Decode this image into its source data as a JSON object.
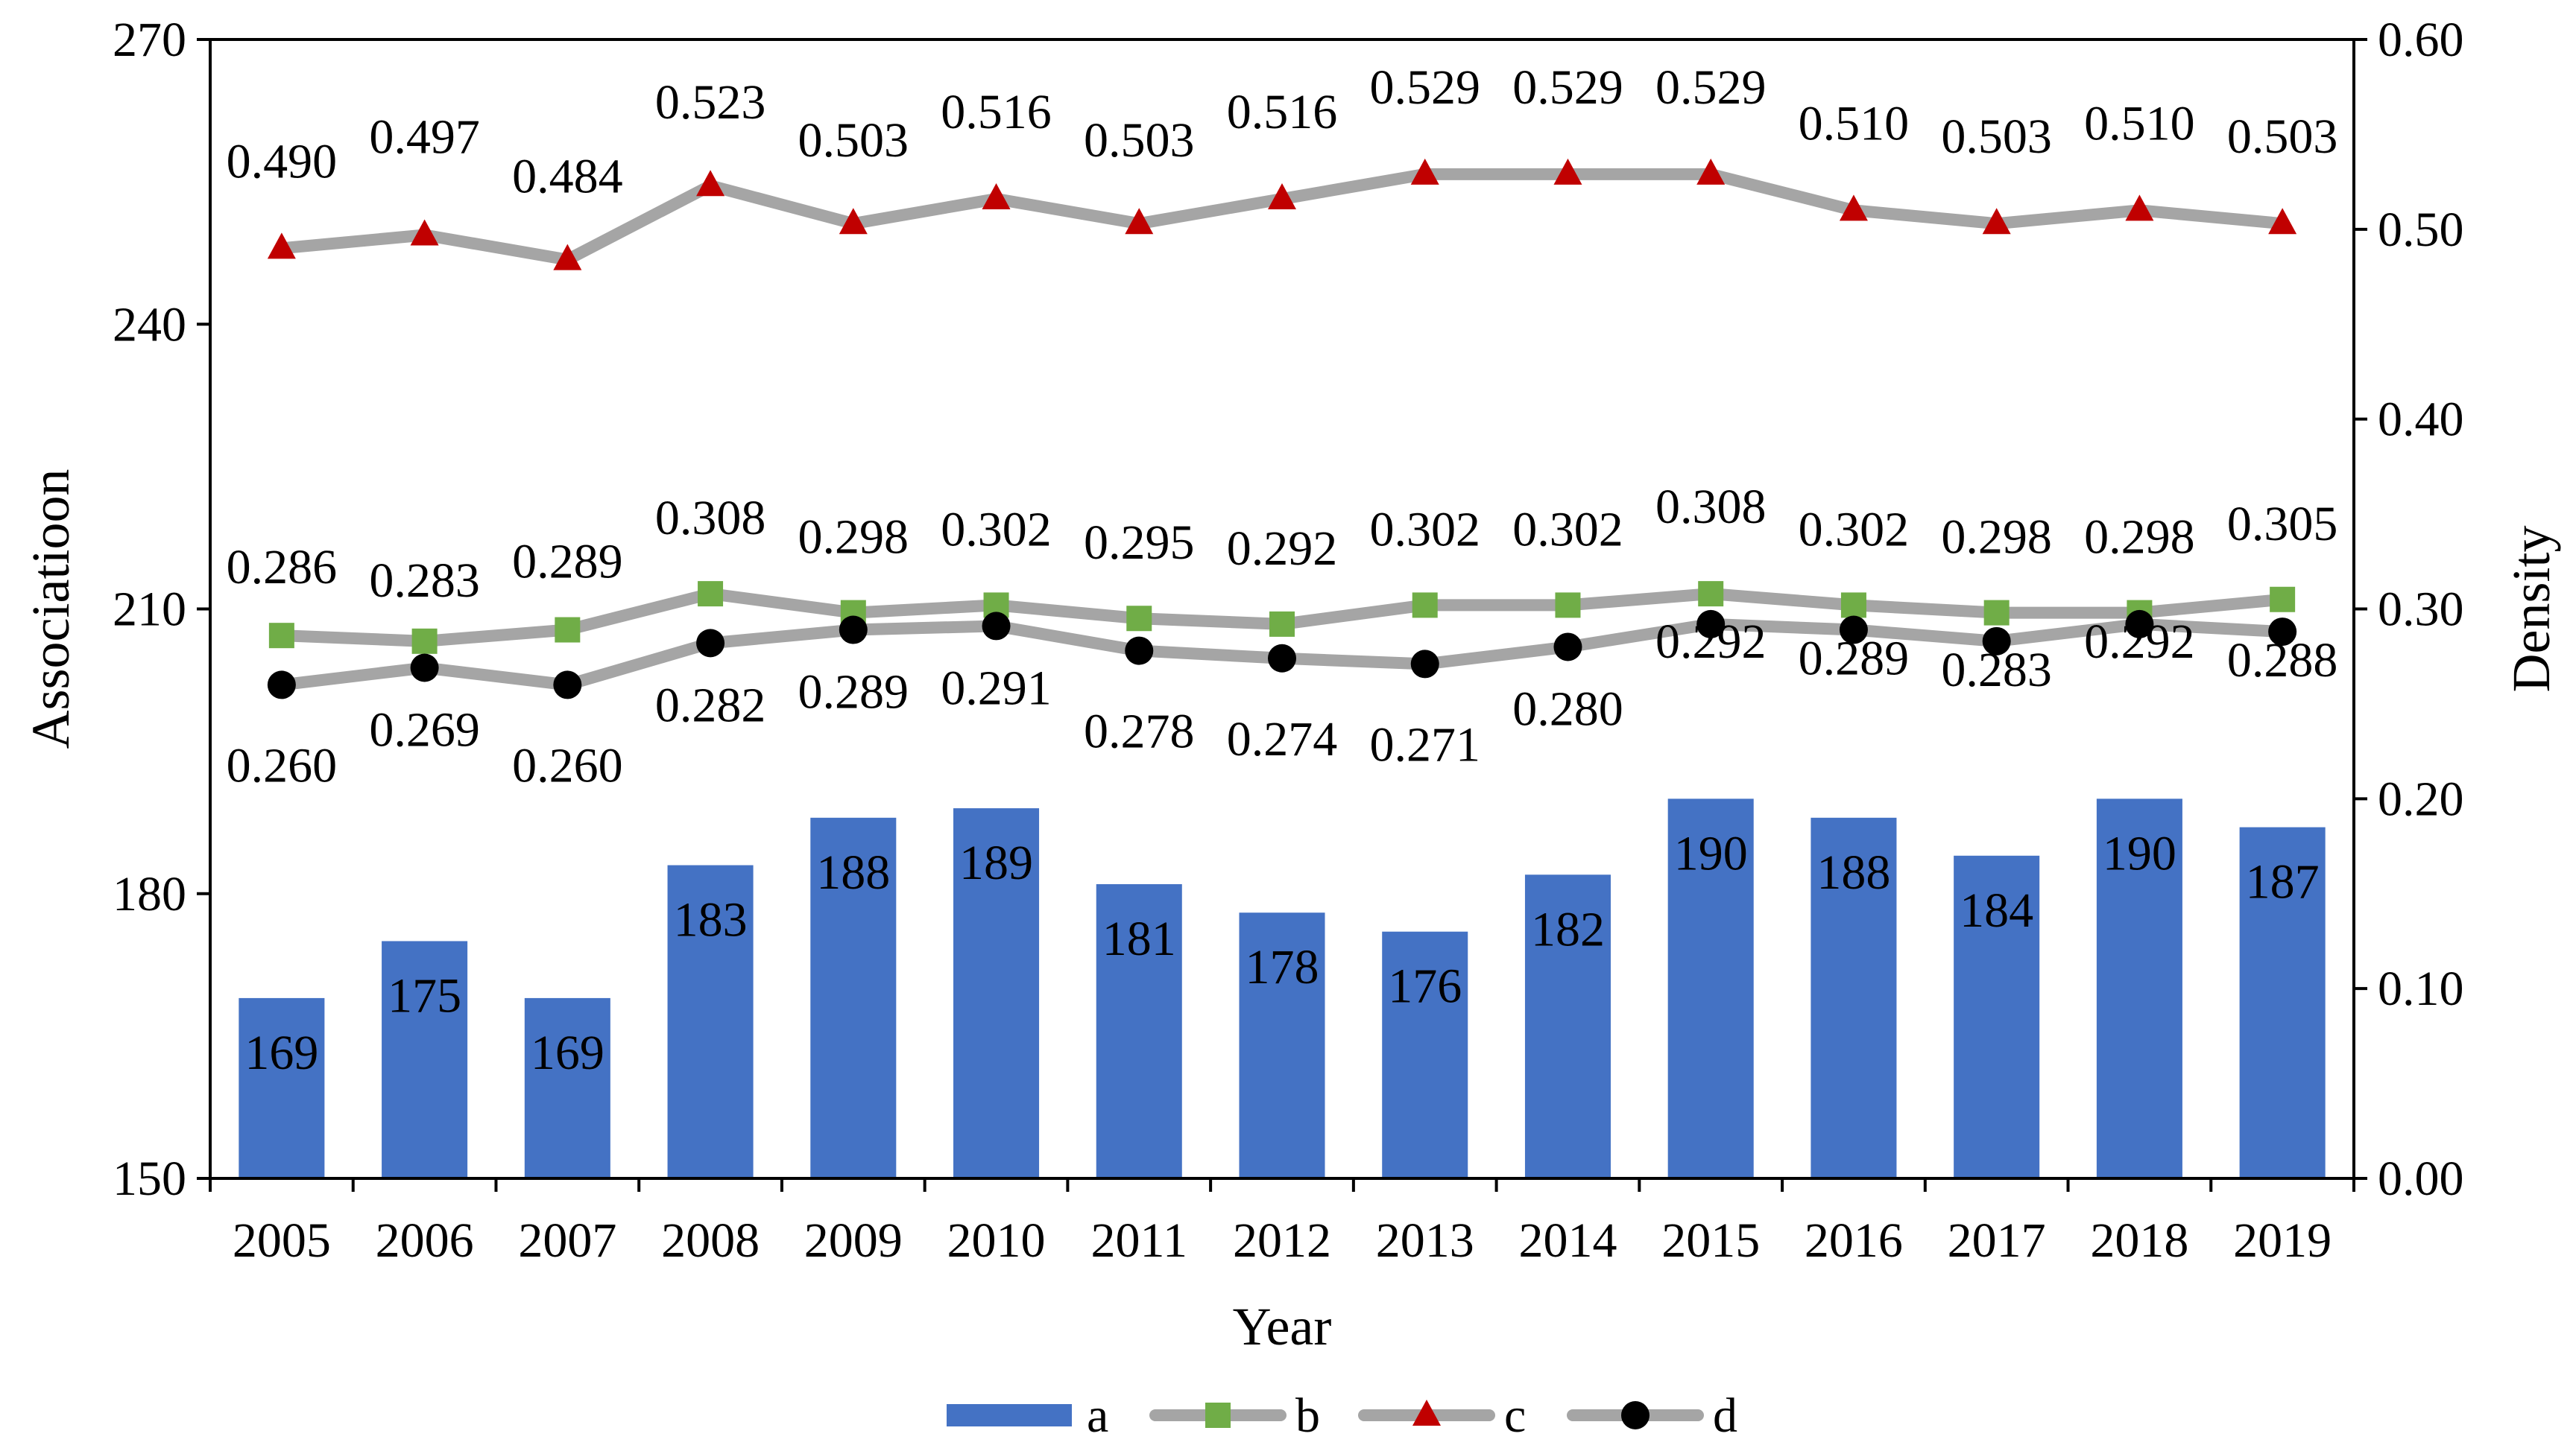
{
  "chart_data": {
    "type": "bar+line",
    "title": "",
    "xlabel": "Year",
    "ylabel_left": "Associatioon",
    "ylabel_right": "Density",
    "categories": [
      "2005",
      "2006",
      "2007",
      "2008",
      "2009",
      "2010",
      "2011",
      "2012",
      "2013",
      "2014",
      "2015",
      "2016",
      "2017",
      "2018",
      "2019"
    ],
    "y_left": {
      "min": 150,
      "max": 270,
      "ticks": [
        150,
        180,
        210,
        240,
        270
      ]
    },
    "y_right": {
      "min": 0,
      "max": 0.6,
      "ticks": [
        "0.00",
        "0.10",
        "0.20",
        "0.30",
        "0.40",
        "0.50",
        "0.60"
      ]
    },
    "series": [
      {
        "name": "a",
        "type": "bar",
        "axis": "left",
        "color": "#4472C4",
        "values": [
          169,
          175,
          169,
          183,
          188,
          189,
          181,
          178,
          176,
          182,
          190,
          188,
          184,
          190,
          187
        ],
        "labels": [
          "169",
          "175",
          "169",
          "183",
          "188",
          "189",
          "181",
          "178",
          "176",
          "182",
          "190",
          "188",
          "184",
          "190",
          "187"
        ]
      },
      {
        "name": "b",
        "type": "line",
        "axis": "right",
        "line_color": "#A5A5A5",
        "marker": "square",
        "marker_color": "#70AD47",
        "values": [
          0.286,
          0.283,
          0.289,
          0.308,
          0.298,
          0.302,
          0.295,
          0.292,
          0.302,
          0.302,
          0.308,
          0.302,
          0.298,
          0.298,
          0.305
        ],
        "labels": [
          "0.286",
          "0.283",
          "0.289",
          "0.308",
          "0.298",
          "0.302",
          "0.295",
          "0.292",
          "0.302",
          "0.302",
          "0.308",
          "0.302",
          "0.298",
          "0.298",
          "0.305"
        ]
      },
      {
        "name": "c",
        "type": "line",
        "axis": "right",
        "line_color": "#A5A5A5",
        "marker": "triangle",
        "marker_color": "#C00000",
        "values": [
          0.49,
          0.497,
          0.484,
          0.523,
          0.503,
          0.516,
          0.503,
          0.516,
          0.529,
          0.529,
          0.529,
          0.51,
          0.503,
          0.51,
          0.503
        ],
        "labels": [
          "0.490",
          "0.497",
          "0.484",
          "0.523",
          "0.503",
          "0.516",
          "0.503",
          "0.516",
          "0.529",
          "0.529",
          "0.529",
          "0.510",
          "0.503",
          "0.510",
          "0.503"
        ]
      },
      {
        "name": "d",
        "type": "line",
        "axis": "right",
        "line_color": "#A5A5A5",
        "marker": "circle",
        "marker_color": "#000000",
        "values": [
          0.26,
          0.269,
          0.26,
          0.282,
          0.289,
          0.291,
          0.278,
          0.274,
          0.271,
          0.28,
          0.292,
          0.289,
          0.283,
          0.292,
          0.288
        ],
        "labels": [
          "0.260",
          "0.269",
          "0.260",
          "0.282",
          "0.289",
          "0.291",
          "0.278",
          "0.274",
          "0.271",
          "0.280",
          "0.292",
          "0.289",
          "0.283",
          "0.292",
          "0.288"
        ]
      }
    ],
    "legend": [
      "a",
      "b",
      "c",
      "d"
    ],
    "legend_position": "bottom",
    "grid": false
  }
}
